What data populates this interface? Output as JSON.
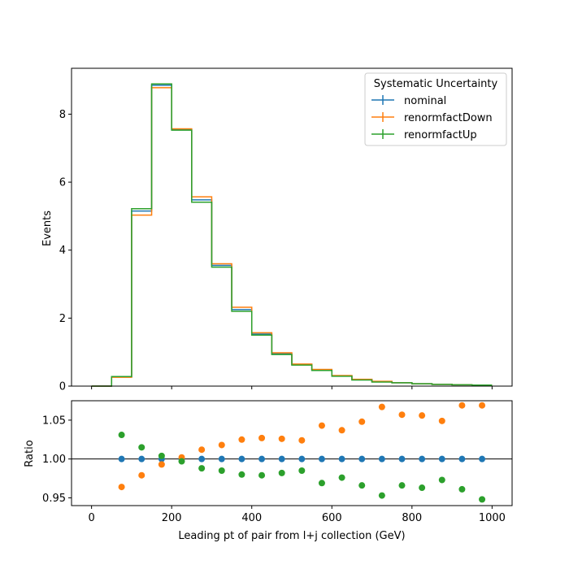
{
  "chart_data": [
    {
      "type": "step",
      "xlabel": "",
      "ylabel": "Events",
      "xlim": [
        -50,
        1050
      ],
      "ylim": [
        0,
        9.35
      ],
      "xticks": [
        0,
        200,
        400,
        600,
        800,
        1000
      ],
      "yticks": [
        0,
        2,
        4,
        6,
        8
      ],
      "ytick_labels": [
        "0",
        "2",
        "4",
        "6",
        "8"
      ],
      "bin_edges": [
        0,
        50,
        100,
        150,
        200,
        250,
        300,
        350,
        400,
        450,
        500,
        550,
        600,
        650,
        700,
        750,
        800,
        850,
        900,
        950,
        1000
      ],
      "series": [
        {
          "name": "nominal",
          "color": "#1f77b4",
          "values": [
            0.0,
            0.27,
            5.15,
            8.85,
            7.55,
            5.48,
            3.55,
            2.25,
            1.53,
            0.95,
            0.63,
            0.47,
            0.3,
            0.19,
            0.13,
            0.1,
            0.07,
            0.05,
            0.04,
            0.03
          ]
        },
        {
          "name": "renormfactDown",
          "color": "#ff7f0e",
          "values": [
            0.0,
            0.26,
            5.03,
            8.78,
            7.57,
            5.57,
            3.6,
            2.32,
            1.57,
            0.98,
            0.65,
            0.49,
            0.31,
            0.2,
            0.14,
            0.1,
            0.07,
            0.05,
            0.04,
            0.03
          ]
        },
        {
          "name": "renormfactUp",
          "color": "#2ca02c",
          "values": [
            0.0,
            0.28,
            5.22,
            8.89,
            7.53,
            5.41,
            3.5,
            2.2,
            1.5,
            0.93,
            0.62,
            0.46,
            0.29,
            0.18,
            0.12,
            0.1,
            0.07,
            0.05,
            0.04,
            0.03
          ]
        }
      ],
      "legend": {
        "title": "Systematic Uncertainty",
        "position": "top-right"
      }
    },
    {
      "type": "scatter",
      "xlabel": "Leading pt of pair from l+j collection (GeV)",
      "ylabel": "Ratio",
      "xlim": [
        -50,
        1050
      ],
      "ylim": [
        0.94,
        1.075
      ],
      "xticks": [
        0,
        200,
        400,
        600,
        800,
        1000
      ],
      "xtick_labels": [
        "0",
        "200",
        "400",
        "600",
        "800",
        "1000"
      ],
      "yticks": [
        0.95,
        1.0,
        1.05
      ],
      "ytick_labels": [
        "0.95",
        "1.00",
        "1.05"
      ],
      "reference_line": 1.0,
      "x": [
        75,
        125,
        175,
        225,
        275,
        325,
        375,
        425,
        475,
        525,
        575,
        625,
        675,
        725,
        775,
        825,
        875,
        925,
        975
      ],
      "series": [
        {
          "name": "nominal",
          "color": "#1f77b4",
          "values": [
            1.0,
            1.0,
            1.0,
            1.0,
            1.0,
            1.0,
            1.0,
            1.0,
            1.0,
            1.0,
            1.0,
            1.0,
            1.0,
            1.0,
            1.0,
            1.0,
            1.0,
            1.0,
            1.0
          ]
        },
        {
          "name": "renormfactDown",
          "color": "#ff7f0e",
          "values": [
            0.964,
            0.979,
            0.993,
            1.002,
            1.012,
            1.018,
            1.025,
            1.027,
            1.026,
            1.024,
            1.043,
            1.037,
            1.048,
            1.067,
            1.057,
            1.056,
            1.049,
            1.069,
            1.069
          ]
        },
        {
          "name": "renormfactUp",
          "color": "#2ca02c",
          "values": [
            1.031,
            1.015,
            1.004,
            0.997,
            0.988,
            0.985,
            0.98,
            0.979,
            0.982,
            0.985,
            0.969,
            0.976,
            0.966,
            0.953,
            0.966,
            0.963,
            0.973,
            0.961,
            0.948
          ]
        }
      ]
    }
  ]
}
